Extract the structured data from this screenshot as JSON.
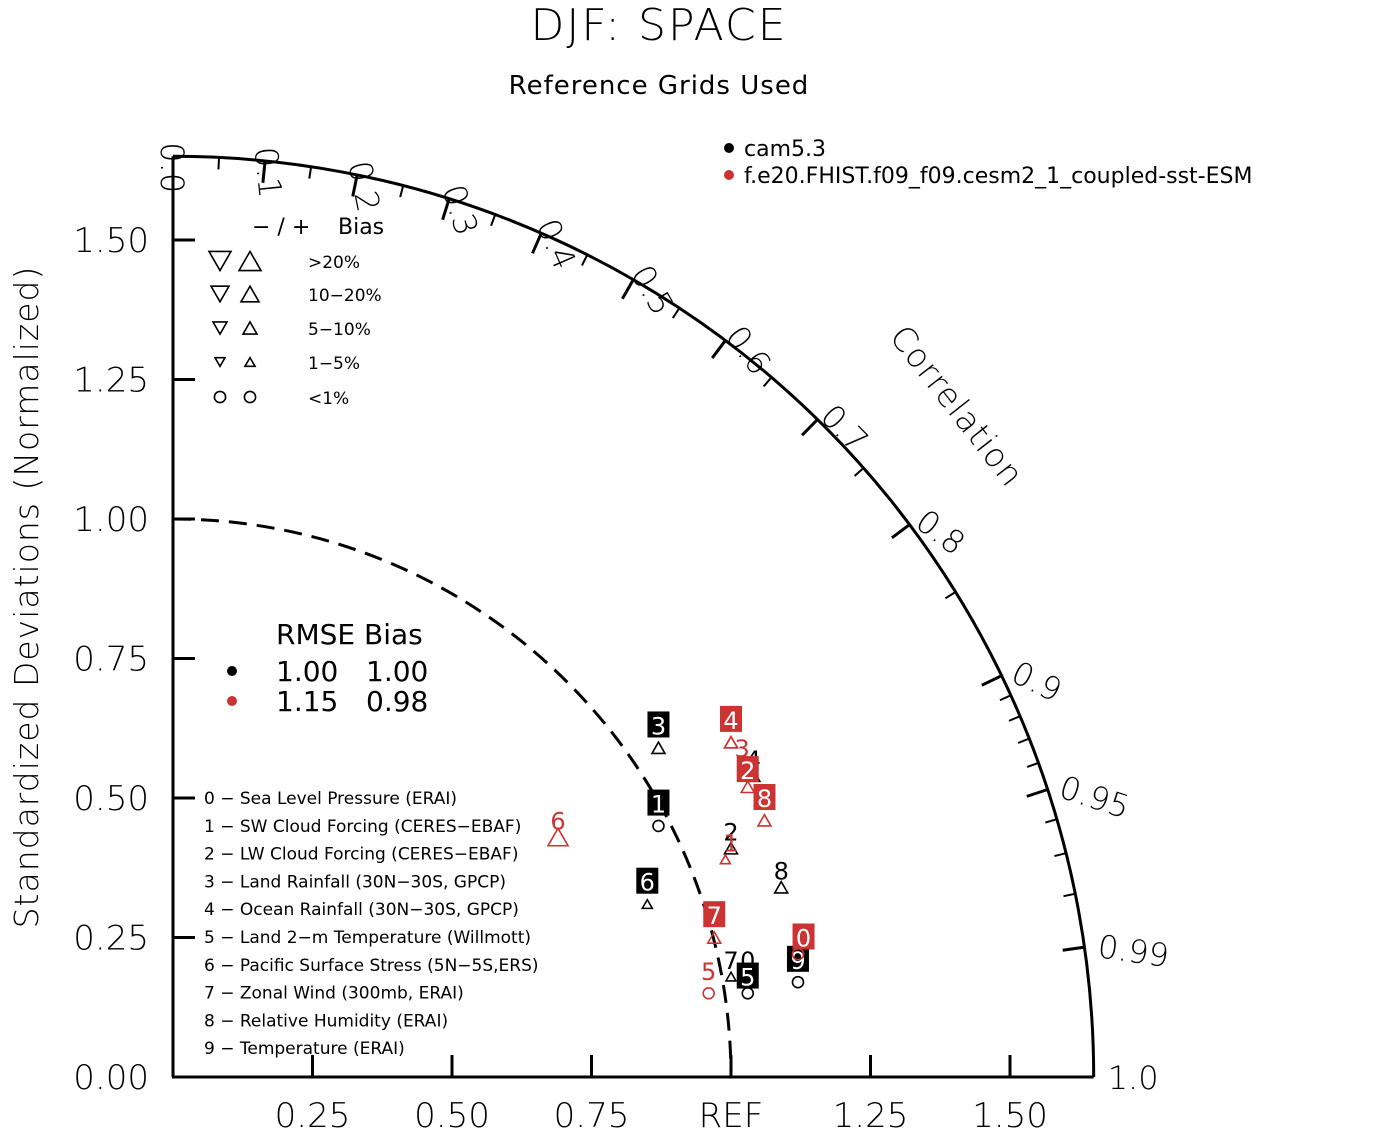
{
  "title": "DJF: SPACE",
  "subtitle": "Reference Grids Used",
  "colors": {
    "black": "#000000",
    "red": "#cc3333",
    "white": "#ffffff"
  },
  "models": [
    {
      "label": "cam5.3",
      "color": "#000000"
    },
    {
      "label": "f.e20.FHIST.f09_f09.cesm2_1_coupled-sst-ESM",
      "color": "#cc3333"
    }
  ],
  "bias_legend": {
    "header_sign": "− / +",
    "header_bias": "Bias",
    "rows": [
      {
        "label": ">20%",
        "size": 22,
        "shape": "triangles"
      },
      {
        "label": "10−20%",
        "size": 18,
        "shape": "triangles"
      },
      {
        "label": "5−10%",
        "size": 14,
        "shape": "triangles"
      },
      {
        "label": "1−5%",
        "size": 10,
        "shape": "triangles"
      },
      {
        "label": "<1%",
        "size": 14,
        "shape": "circles"
      }
    ]
  },
  "rmse_legend": {
    "header": "RMSE Bias",
    "rows": [
      {
        "rmse": "1.00",
        "bias": "1.00",
        "color": "#000000"
      },
      {
        "rmse": "1.15",
        "bias": "0.98",
        "color": "#cc3333"
      }
    ]
  },
  "variables": [
    "0 − Sea Level Pressure (ERAI)",
    "1 − SW Cloud Forcing (CERES−EBAF)",
    "2 − LW Cloud Forcing (CERES−EBAF)",
    "3 − Land Rainfall (30N−30S, GPCP)",
    "4 − Ocean Rainfall (30N−30S, GPCP)",
    "5 − Land 2−m Temperature (Willmott)",
    "6 − Pacific Surface Stress (5N−5S,ERS)",
    "7 − Zonal Wind (300mb, ERAI)",
    "8 − Relative Humidity (ERAI)",
    "9 − Temperature (ERAI)"
  ],
  "chart_data": {
    "type": "scatter",
    "plot_kind": "taylor diagram",
    "title": "DJF: SPACE",
    "subtitle": "Reference Grids Used",
    "ylabel": "Standardized Deviations (Normalized)",
    "xlabel_ref": "REF",
    "radial_range": [
      0,
      1.65
    ],
    "radial_ticks": [
      "0.00",
      "0.25",
      "0.50",
      "0.75",
      "1.00",
      "1.25",
      "1.50"
    ],
    "x_tick_labels": [
      "0.25",
      "0.50",
      "0.75",
      "REF",
      "1.25",
      "1.50"
    ],
    "correlation_label": "Correlation",
    "correlation_ticks": [
      "0.0",
      "0.1",
      "0.2",
      "0.3",
      "0.4",
      "0.5",
      "0.6",
      "0.7",
      "0.8",
      "0.9",
      "0.95",
      "0.99",
      "1.0"
    ],
    "reference_arc": 1.0,
    "series": [
      {
        "name": "cam5.3",
        "color": "#000000",
        "points": [
          {
            "id": "0",
            "x": 1.03,
            "y": 0.21,
            "marker_x": 1.03,
            "marker_y": 0.15,
            "bias": "<1%",
            "boxed": false
          },
          {
            "id": "1",
            "x": 0.87,
            "y": 0.49,
            "marker_x": 0.87,
            "marker_y": 0.45,
            "bias": "<1%",
            "boxed": true
          },
          {
            "id": "2",
            "x": 1.0,
            "y": 0.44,
            "marker_x": 1.0,
            "marker_y": 0.41,
            "bias": "5-10% +",
            "boxed": false
          },
          {
            "id": "3",
            "x": 0.87,
            "y": 0.63,
            "marker_x": 0.87,
            "marker_y": 0.59,
            "bias": "5-10% +",
            "boxed": true
          },
          {
            "id": "4",
            "x": 1.04,
            "y": 0.57,
            "marker_x": 1.04,
            "marker_y": 0.54,
            "bias": "5-10% +",
            "boxed": false
          },
          {
            "id": "5",
            "x": 1.03,
            "y": 0.18,
            "marker_x": 1.03,
            "marker_y": 0.17,
            "bias": "<1%",
            "boxed": true
          },
          {
            "id": "6",
            "x": 0.85,
            "y": 0.35,
            "marker_x": 0.85,
            "marker_y": 0.31,
            "bias": "1-5% +",
            "boxed": true
          },
          {
            "id": "7",
            "x": 1.0,
            "y": 0.21,
            "marker_x": 1.0,
            "marker_y": 0.18,
            "bias": "1-5% +",
            "boxed": false
          },
          {
            "id": "8",
            "x": 1.09,
            "y": 0.37,
            "marker_x": 1.09,
            "marker_y": 0.34,
            "bias": "5-10% +",
            "boxed": false
          },
          {
            "id": "9",
            "x": 1.12,
            "y": 0.21,
            "marker_x": 1.12,
            "marker_y": 0.17,
            "bias": "<1%",
            "boxed": true
          }
        ]
      },
      {
        "name": "f.e20.FHIST.f09_f09.cesm2_1_coupled-sst-ESM",
        "color": "#cc3333",
        "points": [
          {
            "id": "0",
            "x": 1.13,
            "y": 0.25,
            "marker_x": 1.12,
            "marker_y": 0.22,
            "bias": "<1%",
            "boxed": true
          },
          {
            "id": "2",
            "x": 1.03,
            "y": 0.55,
            "marker_x": 1.03,
            "marker_y": 0.52,
            "bias": "5-10% +",
            "boxed": true
          },
          {
            "id": "3",
            "x": 1.02,
            "y": 0.59,
            "marker_x": 1.0,
            "marker_y": 0.6,
            "bias": "5-10% +",
            "boxed": false
          },
          {
            "id": "4",
            "x": 1.0,
            "y": 0.64,
            "marker_x": 1.0,
            "marker_y": 0.6,
            "bias": "5-10% +",
            "boxed": true
          },
          {
            "id": "5",
            "x": 0.96,
            "y": 0.19,
            "marker_x": 0.96,
            "marker_y": 0.15,
            "bias": "<1%",
            "boxed": false
          },
          {
            "id": "6",
            "x": 0.69,
            "y": 0.46,
            "marker_x": 0.69,
            "marker_y": 0.43,
            "bias": ">20% +",
            "boxed": false
          },
          {
            "id": "7",
            "x": 0.97,
            "y": 0.29,
            "marker_x": 0.97,
            "marker_y": 0.25,
            "bias": "5-10% +",
            "boxed": true
          },
          {
            "id": "8",
            "x": 1.06,
            "y": 0.5,
            "marker_x": 1.06,
            "marker_y": 0.46,
            "bias": "5-10% +",
            "boxed": true
          },
          {
            "id": "1",
            "x": 1.0,
            "y": 0.42,
            "marker_x": 0.99,
            "marker_y": 0.39,
            "bias": "1-5% +",
            "boxed": false
          }
        ]
      }
    ]
  }
}
